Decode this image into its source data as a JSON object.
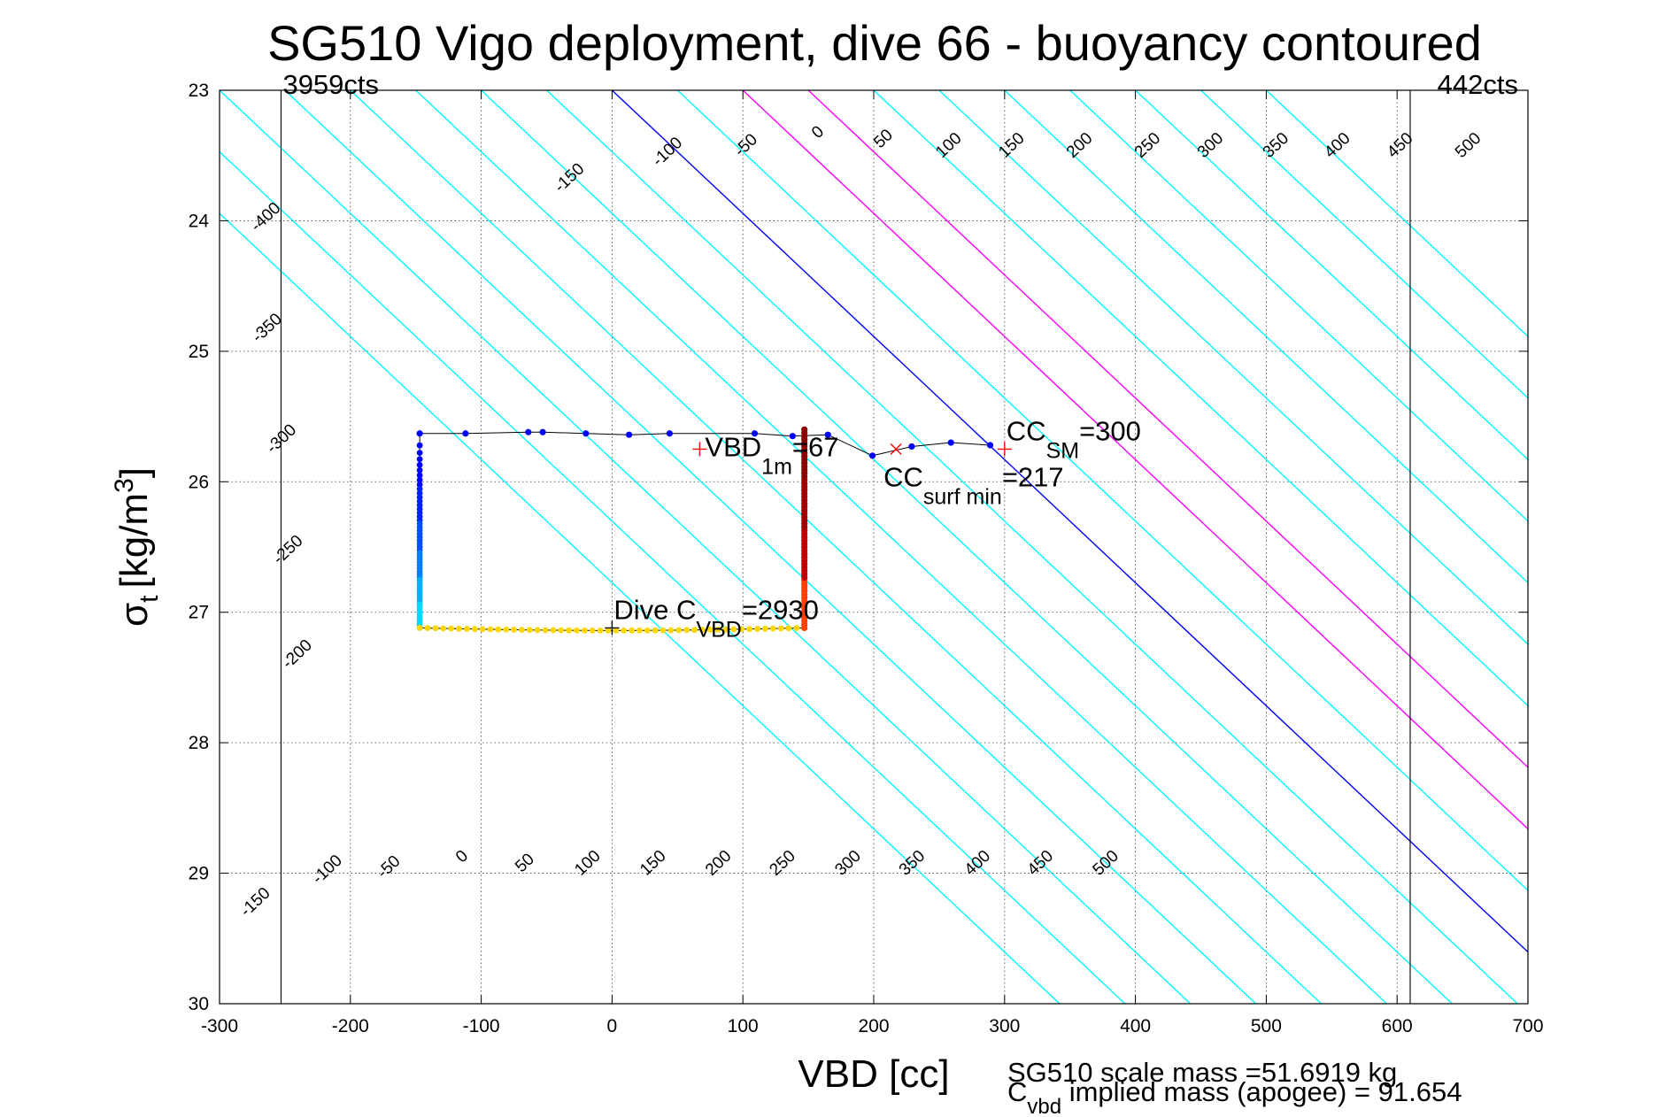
{
  "chart_data": {
    "type": "scatter",
    "title": "SG510 Vigo deployment, dive 66 - buoyancy contoured",
    "xlabel": "VBD [cc]",
    "ylabel": "σ",
    "ylabel_sub": "t",
    "ylabel_unit": "[kg/m",
    "ylabel_sup": "3",
    "ylabel_close": "]",
    "xlim": [
      -300,
      700
    ],
    "ylim": [
      30,
      23
    ],
    "xticks": [
      -300,
      -200,
      -100,
      0,
      100,
      200,
      300,
      400,
      500,
      600,
      700
    ],
    "yticks": [
      23,
      24,
      25,
      26,
      27,
      28,
      29,
      30
    ],
    "grid": true,
    "contour_slope_cc_per_sigma": 106,
    "contours": [
      {
        "value": -400,
        "color": "#00ffff"
      },
      {
        "value": -350,
        "color": "#00ffff"
      },
      {
        "value": -300,
        "color": "#00ffff"
      },
      {
        "value": -250,
        "color": "#00ffff"
      },
      {
        "value": -200,
        "color": "#00ffff"
      },
      {
        "value": -150,
        "color": "#00ffff"
      },
      {
        "value": -100,
        "color": "#00ffff"
      },
      {
        "value": -50,
        "color": "#00ffff"
      },
      {
        "value": 0,
        "color": "#0000ff"
      },
      {
        "value": 50,
        "color": "#00ffff"
      },
      {
        "value": 100,
        "color": "#ff00ff"
      },
      {
        "value": 150,
        "color": "#ff00ff"
      },
      {
        "value": 200,
        "color": "#00ffff"
      },
      {
        "value": 250,
        "color": "#00ffff"
      },
      {
        "value": 300,
        "color": "#00ffff"
      },
      {
        "value": 350,
        "color": "#00ffff"
      },
      {
        "value": 400,
        "color": "#00ffff"
      },
      {
        "value": 450,
        "color": "#00ffff"
      },
      {
        "value": 500,
        "color": "#00ffff"
      }
    ],
    "top_contour_labels": [
      {
        "text": "-400",
        "x": -262,
        "y": 24.0
      },
      {
        "text": "-350",
        "x": -261,
        "y": 24.85
      },
      {
        "text": "-300",
        "x": -250,
        "y": 25.7
      },
      {
        "text": "-250",
        "x": -245,
        "y": 26.55
      },
      {
        "text": "-200",
        "x": -238,
        "y": 27.35
      },
      {
        "text": "-150",
        "x": -30,
        "y": 23.7
      },
      {
        "text": "-100",
        "x": 45,
        "y": 23.5
      },
      {
        "text": "-50",
        "x": 105,
        "y": 23.45
      },
      {
        "text": "0",
        "x": 160,
        "y": 23.35
      },
      {
        "text": "50",
        "x": 210,
        "y": 23.4
      },
      {
        "text": "100",
        "x": 260,
        "y": 23.45
      },
      {
        "text": "150",
        "x": 308,
        "y": 23.45
      },
      {
        "text": "200",
        "x": 360,
        "y": 23.45
      },
      {
        "text": "250",
        "x": 412,
        "y": 23.45
      },
      {
        "text": "300",
        "x": 460,
        "y": 23.45
      },
      {
        "text": "350",
        "x": 510,
        "y": 23.45
      },
      {
        "text": "400",
        "x": 557,
        "y": 23.45
      },
      {
        "text": "450",
        "x": 605,
        "y": 23.45
      },
      {
        "text": "500",
        "x": 657,
        "y": 23.45
      }
    ],
    "bottom_contour_labels": [
      {
        "text": "-150",
        "x": -270,
        "y": 29.25
      },
      {
        "text": "-100",
        "x": -215,
        "y": 29.0
      },
      {
        "text": "-50",
        "x": -168,
        "y": 28.98
      },
      {
        "text": "0",
        "x": -112,
        "y": 28.9
      },
      {
        "text": "50",
        "x": -64,
        "y": 28.95
      },
      {
        "text": "100",
        "x": -16,
        "y": 28.95
      },
      {
        "text": "150",
        "x": 34,
        "y": 28.95
      },
      {
        "text": "200",
        "x": 84,
        "y": 28.95
      },
      {
        "text": "250",
        "x": 133,
        "y": 28.95
      },
      {
        "text": "300",
        "x": 183,
        "y": 28.95
      },
      {
        "text": "350",
        "x": 232,
        "y": 28.95
      },
      {
        "text": "400",
        "x": 282,
        "y": 28.95
      },
      {
        "text": "450",
        "x": 330,
        "y": 28.95
      },
      {
        "text": "500",
        "x": 380,
        "y": 28.95
      }
    ],
    "vlines": [
      {
        "x": -253,
        "label": "3959cts",
        "align": "start"
      },
      {
        "x": 610,
        "label": "442cts",
        "align": "end"
      }
    ],
    "series": [
      {
        "segments": [
          {
            "points": [
              [
                -147,
                25.63
              ],
              [
                -112,
                25.63
              ],
              [
                -64,
                25.62
              ],
              [
                -53,
                25.62
              ],
              [
                -20,
                25.63
              ],
              [
                13,
                25.64
              ],
              [
                44,
                25.63
              ],
              [
                109,
                25.63
              ],
              [
                138,
                25.65
              ],
              [
                165,
                25.64
              ],
              [
                199,
                25.8
              ],
              [
                229,
                25.73
              ],
              [
                259,
                25.7
              ],
              [
                289,
                25.72
              ]
            ],
            "color": "#0000ff"
          },
          {
            "x": -147,
            "y_from": 25.63,
            "y_to": 27.12,
            "n": 55,
            "colors": [
              "#0000ff",
              "#0020ff",
              "#0050ff",
              "#0080ff",
              "#00b0ff",
              "#00d8ff"
            ]
          },
          {
            "x_from": -147,
            "x_to": 147,
            "y": 27.12,
            "y_mid": 27.14,
            "n": 50,
            "color": "#ffd700"
          },
          {
            "x": 147,
            "y_from": 27.12,
            "y_to": 25.6,
            "n": 60,
            "colors": [
              "#ff4000",
              "#c00000",
              "#a00000",
              "#8b0000"
            ]
          }
        ]
      }
    ],
    "markers": [
      {
        "x": 67,
        "y": 25.75,
        "text": "VBD",
        "sub": "1m",
        "suffix": "=67",
        "color": "#ff0000"
      },
      {
        "x": 217,
        "y": 25.75,
        "text": "CC",
        "sub": "surf min",
        "suffix": "=217",
        "color": "#ff0000"
      },
      {
        "x": 300,
        "y": 25.75,
        "text": "CC",
        "sub": "SM",
        "suffix": "=300",
        "color": "#ff0000"
      },
      {
        "x": 0,
        "y": 27.12,
        "text": "Dive C",
        "sub": "VBD",
        "suffix": "=2930",
        "color": "#000000"
      }
    ]
  },
  "footer": {
    "line1": "SG510 scale mass =51.6919 kg",
    "line2_main": "C",
    "line2_sub": "vbd",
    "line2_rest": " implied mass (apogee) = 91.654"
  }
}
